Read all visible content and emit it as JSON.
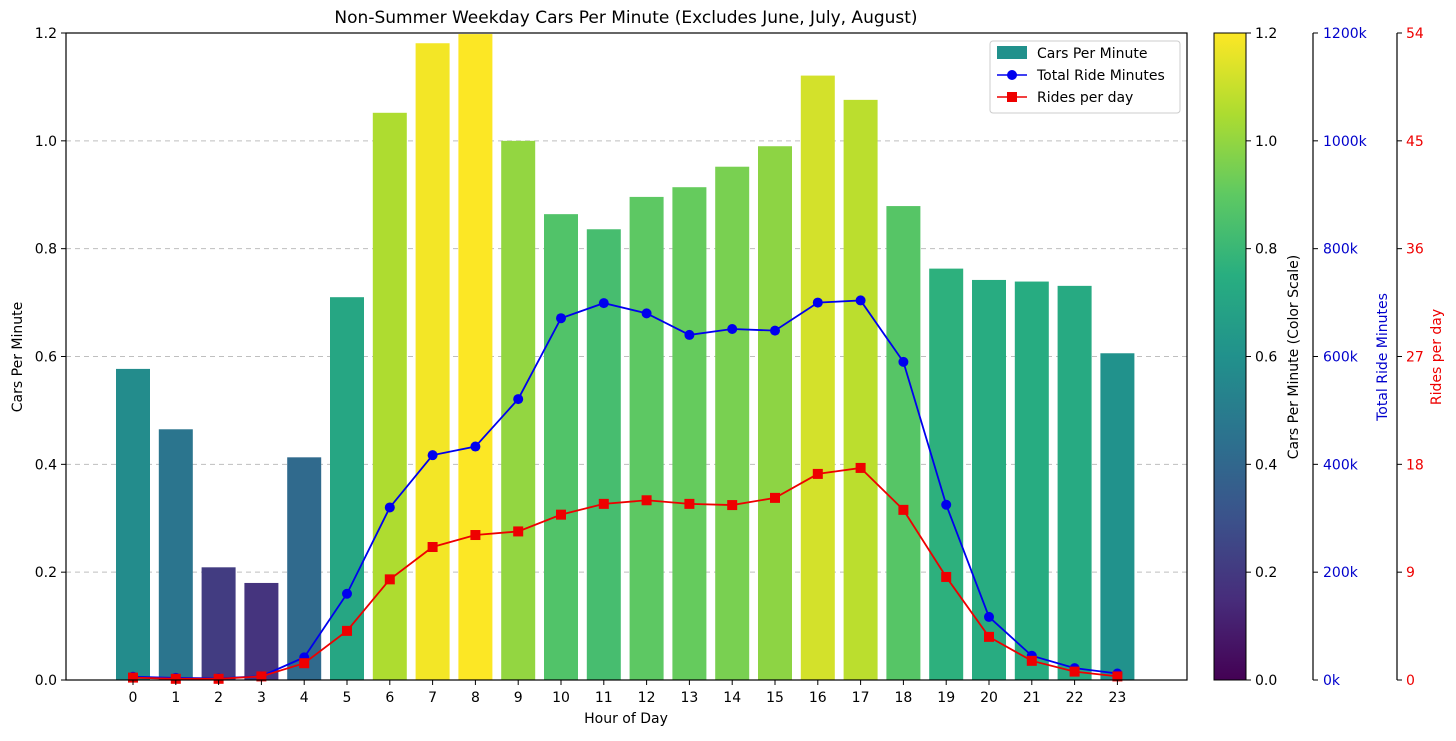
{
  "chart_data": {
    "type": "bar",
    "title": "Non-Summer Weekday Cars Per Minute (Excludes June, July, August)",
    "xlabel": "Hour of Day",
    "ylabel": "Cars Per Minute",
    "categories": [
      "0",
      "1",
      "2",
      "3",
      "4",
      "5",
      "6",
      "7",
      "8",
      "9",
      "10",
      "11",
      "12",
      "13",
      "14",
      "15",
      "16",
      "17",
      "18",
      "19",
      "20",
      "21",
      "22",
      "23"
    ],
    "ylim": [
      0,
      1.2
    ],
    "y_ticks": [
      "0.0",
      "0.2",
      "0.4",
      "0.6",
      "0.8",
      "1.0",
      "1.2"
    ],
    "grid": "horizontal dashed",
    "legend_position": "top-right",
    "series": [
      {
        "name": "Cars Per Minute",
        "type": "bar",
        "axis": "left",
        "values": [
          0.577,
          0.465,
          0.209,
          0.18,
          0.413,
          0.71,
          1.052,
          1.181,
          1.198,
          1.0,
          0.864,
          0.836,
          0.896,
          0.914,
          0.952,
          0.99,
          1.121,
          1.076,
          0.879,
          0.763,
          0.742,
          0.739,
          0.731,
          0.606
        ]
      },
      {
        "name": "Total Ride Minutes",
        "type": "line",
        "marker": "circle",
        "axis": "right1",
        "color": "#0000ee",
        "values": [
          6,
          4,
          3,
          7,
          42,
          160,
          320,
          417,
          433,
          521,
          671,
          699,
          680,
          640,
          651,
          648,
          700,
          704,
          590,
          325,
          117,
          45,
          22,
          12
        ]
      },
      {
        "name": "Rides per day",
        "type": "line",
        "marker": "square",
        "axis": "right2",
        "color": "#ee0000",
        "values": [
          0.2,
          0.1,
          0.1,
          0.3,
          1.4,
          4.1,
          8.4,
          11.1,
          12.1,
          12.4,
          13.8,
          14.7,
          15.0,
          14.7,
          14.6,
          15.2,
          17.2,
          17.7,
          14.2,
          8.6,
          3.6,
          1.6,
          0.7,
          0.3
        ]
      }
    ],
    "colorbar": {
      "label": "Cars Per Minute (Color Scale)",
      "range": [
        0,
        1.2
      ],
      "ticks": [
        "0.0",
        "0.2",
        "0.4",
        "0.6",
        "0.8",
        "1.0",
        "1.2"
      ],
      "colormap": "viridis"
    },
    "right_axis_1": {
      "label": "Total Ride Minutes",
      "range": [
        0,
        1200
      ],
      "ticks": [
        "0k",
        "200k",
        "400k",
        "600k",
        "800k",
        "1000k",
        "1200k"
      ],
      "color": "#0000cc"
    },
    "right_axis_2": {
      "label": "Rides per day",
      "range": [
        0,
        54
      ],
      "ticks": [
        "0",
        "9",
        "18",
        "27",
        "36",
        "45",
        "54"
      ],
      "color": "#ee0000"
    }
  }
}
